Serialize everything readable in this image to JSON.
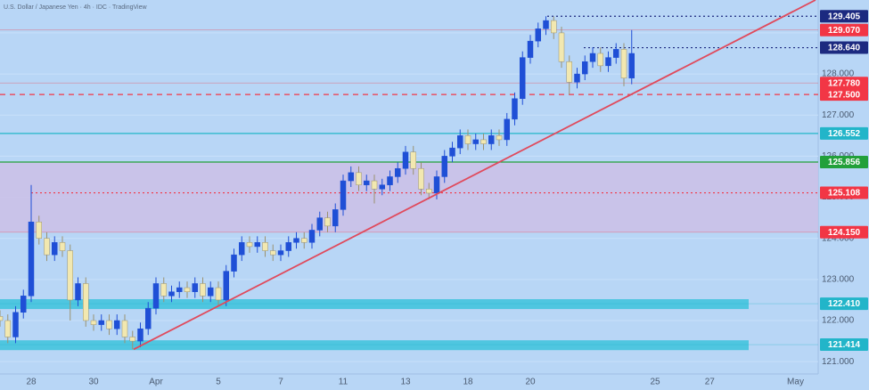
{
  "chart_data": {
    "type": "candlestick",
    "title": "U.S. Dollar / Japanese Yen · 4h · IDC · TradingView",
    "categories": [
      null,
      null,
      null,
      null,
      "28",
      null,
      null,
      null,
      null,
      null,
      null,
      null,
      "30",
      null,
      null,
      null,
      null,
      null,
      null,
      null,
      "Apr",
      null,
      null,
      null,
      null,
      null,
      null,
      null,
      "5",
      null,
      null,
      null,
      null,
      null,
      null,
      null,
      "7",
      null,
      null,
      null,
      null,
      null,
      null,
      null,
      "11",
      null,
      null,
      null,
      null,
      null,
      null,
      null,
      "13",
      null,
      null,
      null,
      null,
      null,
      null,
      null,
      "18",
      null,
      null,
      null,
      null,
      null,
      null,
      null,
      "20",
      null,
      null,
      null,
      null,
      null,
      null,
      null,
      null,
      null,
      null,
      null,
      null,
      null,
      null,
      null,
      "25",
      null,
      null,
      null,
      null,
      null,
      null,
      "27",
      null,
      null,
      null,
      null,
      null,
      null,
      null,
      null,
      null,
      null,
      "May"
    ],
    "open": [
      122.1,
      122.0,
      121.6,
      122.2,
      122.6,
      124.4,
      124.0,
      123.6,
      123.9,
      123.7,
      122.5,
      122.9,
      122.0,
      121.9,
      122.0,
      121.8,
      122.0,
      121.6,
      121.5,
      121.8,
      122.3,
      122.9,
      122.6,
      122.7,
      122.8,
      122.7,
      122.9,
      122.6,
      122.8,
      122.5,
      123.2,
      123.6,
      123.9,
      123.8,
      123.9,
      123.7,
      123.6,
      123.7,
      123.9,
      124.0,
      123.9,
      124.2,
      124.5,
      124.3,
      124.7,
      125.4,
      125.6,
      125.3,
      125.4,
      125.2,
      125.3,
      125.5,
      125.7,
      126.1,
      125.7,
      125.2,
      125.1,
      125.5,
      126.0,
      126.2,
      126.5,
      126.3,
      126.4,
      126.3,
      126.5,
      126.4,
      126.9,
      127.4,
      128.4,
      128.8,
      129.1,
      129.3,
      129.0,
      128.3,
      127.8,
      128.0,
      128.3,
      128.5,
      128.2,
      128.4,
      128.6,
      127.9,
      null,
      null,
      null,
      null,
      null,
      null,
      null,
      null,
      null,
      null,
      null,
      null,
      null,
      null,
      null,
      null,
      null,
      null,
      null,
      null,
      null
    ],
    "high": [
      122.25,
      122.15,
      122.35,
      122.75,
      125.3,
      124.55,
      124.15,
      124.05,
      124.05,
      123.85,
      123.05,
      123.05,
      122.15,
      122.15,
      122.15,
      122.15,
      122.15,
      121.75,
      121.95,
      122.45,
      123.05,
      123.05,
      122.85,
      122.95,
      122.95,
      123.05,
      123.05,
      122.95,
      122.95,
      123.35,
      123.75,
      124.05,
      124.05,
      124.05,
      124.05,
      123.85,
      123.85,
      124.05,
      124.15,
      124.15,
      124.35,
      124.65,
      124.65,
      124.85,
      125.55,
      125.75,
      125.75,
      125.55,
      125.55,
      125.45,
      125.65,
      125.85,
      126.25,
      126.25,
      125.85,
      125.35,
      125.65,
      126.15,
      126.35,
      126.65,
      126.65,
      126.55,
      126.55,
      126.65,
      126.65,
      127.05,
      127.55,
      128.55,
      128.95,
      129.25,
      129.405,
      129.4,
      129.15,
      128.45,
      128.15,
      128.45,
      128.65,
      128.65,
      128.55,
      128.75,
      128.75,
      129.07,
      null,
      null,
      null,
      null,
      null,
      null,
      null,
      null,
      null,
      null,
      null,
      null,
      null,
      null,
      null,
      null,
      null,
      null,
      null,
      null,
      null
    ],
    "low": [
      121.85,
      121.45,
      121.45,
      122.05,
      122.45,
      123.85,
      123.45,
      123.45,
      123.55,
      122.0,
      122.35,
      121.85,
      121.75,
      121.75,
      121.65,
      121.65,
      121.45,
      121.3,
      121.35,
      121.65,
      122.15,
      122.45,
      122.45,
      122.55,
      122.55,
      122.55,
      122.45,
      122.45,
      122.35,
      122.35,
      123.05,
      123.45,
      123.65,
      123.65,
      123.55,
      123.45,
      123.45,
      123.55,
      123.75,
      123.75,
      123.75,
      124.05,
      124.15,
      124.15,
      124.55,
      125.25,
      125.15,
      125.15,
      124.85,
      125.05,
      125.15,
      125.35,
      125.55,
      125.55,
      125.05,
      124.95,
      124.95,
      125.35,
      125.85,
      126.05,
      126.15,
      126.15,
      126.15,
      126.15,
      126.25,
      126.25,
      126.75,
      127.25,
      128.25,
      128.65,
      128.95,
      128.85,
      128.15,
      127.5,
      127.65,
      127.85,
      128.15,
      128.05,
      128.05,
      128.25,
      127.7,
      127.75,
      null,
      null,
      null,
      null,
      null,
      null,
      null,
      null,
      null,
      null,
      null,
      null,
      null,
      null,
      null,
      null,
      null,
      null,
      null,
      null,
      null
    ],
    "close": [
      122.0,
      121.6,
      122.2,
      122.6,
      124.4,
      124.0,
      123.6,
      123.9,
      123.7,
      122.5,
      122.9,
      122.0,
      121.9,
      122.0,
      121.8,
      122.0,
      121.6,
      121.5,
      121.8,
      122.3,
      122.9,
      122.6,
      122.7,
      122.8,
      122.7,
      122.9,
      122.6,
      122.8,
      122.5,
      123.2,
      123.6,
      123.9,
      123.8,
      123.9,
      123.7,
      123.6,
      123.7,
      123.9,
      124.0,
      123.9,
      124.2,
      124.5,
      124.3,
      124.7,
      125.4,
      125.6,
      125.3,
      125.4,
      125.2,
      125.3,
      125.5,
      125.7,
      126.1,
      125.7,
      125.2,
      125.1,
      125.5,
      126.0,
      126.2,
      126.5,
      126.3,
      126.4,
      126.3,
      126.5,
      126.4,
      126.9,
      127.4,
      128.4,
      128.8,
      129.1,
      129.3,
      129.0,
      128.3,
      127.8,
      128.0,
      128.3,
      128.5,
      128.2,
      128.4,
      128.6,
      127.9,
      128.5,
      null,
      null,
      null,
      null,
      null,
      null,
      null,
      null,
      null,
      null,
      null,
      null,
      null,
      null,
      null,
      null,
      null,
      null,
      null,
      null,
      null
    ],
    "up_color": "#1f4fd6",
    "down_color": "#f2e8b0",
    "ylim": [
      120.7,
      129.8
    ],
    "yticks": [
      {
        "value": 121,
        "label": "121.000"
      },
      {
        "value": 122,
        "label": "122.000"
      },
      {
        "value": 123,
        "label": "123.000"
      },
      {
        "value": 124,
        "label": "124.000"
      },
      {
        "value": 125,
        "label": "125.000"
      },
      {
        "value": 126,
        "label": "126.000"
      },
      {
        "value": 127,
        "label": "127.000"
      },
      {
        "value": 128,
        "label": "128.000"
      },
      {
        "value": 129,
        "label": "129.000"
      }
    ],
    "grid": true,
    "zones": [
      {
        "from": 125.856,
        "to": 124.15,
        "color": "#cbbfe6"
      },
      {
        "from": 122.52,
        "to": 122.28,
        "color": "#3cc3dc"
      },
      {
        "from": 121.52,
        "to": 121.28,
        "color": "#3cc3dc"
      }
    ],
    "levels": [
      {
        "value": 129.405,
        "label": "129.405",
        "color": "#1c2a80",
        "style": "dotted"
      },
      {
        "value": 129.07,
        "label": "129.070",
        "color": "#f23645",
        "style": "faint"
      },
      {
        "value": 128.64,
        "label": "128.640",
        "color": "#1c2a80",
        "style": "dotted"
      },
      {
        "value": 127.78,
        "label": "127.780",
        "color": "#f23645",
        "style": "faint"
      },
      {
        "value": 127.5,
        "label": "127.500",
        "color": "#f23645",
        "style": "dashed"
      },
      {
        "value": 126.552,
        "label": "126.552",
        "color": "#22b5c9",
        "style": "solid"
      },
      {
        "value": 125.856,
        "label": "125.856",
        "color": "#22a03a",
        "style": "solid"
      },
      {
        "value": 125.108,
        "label": "125.108",
        "color": "#f23645",
        "style": "dotted"
      },
      {
        "value": 124.15,
        "label": "124.150",
        "color": "#f23645",
        "style": "faint"
      },
      {
        "value": 122.41,
        "label": "122.410",
        "color": "#22b5c9",
        "style": "faint"
      },
      {
        "value": 121.414,
        "label": "121.414",
        "color": "#22b5c9",
        "style": "faint"
      }
    ],
    "trendline": [
      121.3,
      129.8
    ],
    "trendline_color": "#e04a5c"
  }
}
